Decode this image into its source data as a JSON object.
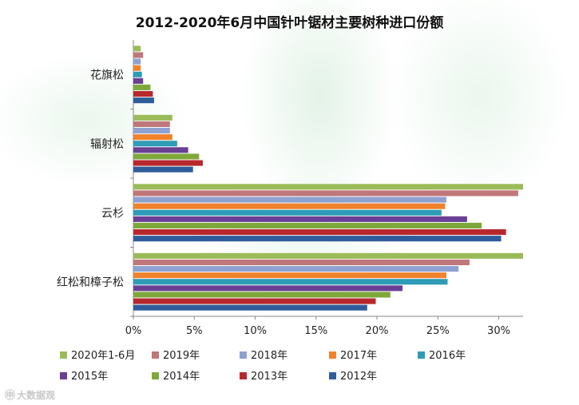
{
  "title": "2012-2020年6月中国针叶锯材主要树种进口份额",
  "watermark": "大数据观",
  "chart_data": {
    "type": "bar",
    "orientation": "horizontal",
    "title": "2012-2020年6月中国针叶锯材主要树种进口份额",
    "xlabel": "",
    "ylabel": "",
    "xlim": [
      0,
      32
    ],
    "x_ticks": [
      "0%",
      "5%",
      "10%",
      "15%",
      "20%",
      "25%",
      "30%"
    ],
    "x_tick_values": [
      0,
      5,
      10,
      15,
      20,
      25,
      30
    ],
    "legend_position": "bottom",
    "categories": [
      "花旗松",
      "辐射松",
      "云杉",
      "红松和樟子松"
    ],
    "series": [
      {
        "name": "2020年1-6月",
        "color": "#9bbb59",
        "values": [
          0.6,
          3.2,
          32.0,
          32.0
        ]
      },
      {
        "name": "2019年",
        "color": "#c0777a",
        "values": [
          0.8,
          3.0,
          31.6,
          27.6
        ]
      },
      {
        "name": "2018年",
        "color": "#8ea1d1",
        "values": [
          0.6,
          3.0,
          25.7,
          26.7
        ]
      },
      {
        "name": "2017年",
        "color": "#f0822c",
        "values": [
          0.6,
          3.2,
          25.6,
          25.7
        ]
      },
      {
        "name": "2016年",
        "color": "#2e9bb7",
        "values": [
          0.7,
          3.6,
          25.3,
          25.8
        ]
      },
      {
        "name": "2015年",
        "color": "#6a3f95",
        "values": [
          0.8,
          4.5,
          27.4,
          22.1
        ]
      },
      {
        "name": "2014年",
        "color": "#7ea83a",
        "values": [
          1.4,
          5.4,
          28.6,
          21.1
        ]
      },
      {
        "name": "2013年",
        "color": "#b7282d",
        "values": [
          1.6,
          5.7,
          30.6,
          19.9
        ]
      },
      {
        "name": "2012年",
        "color": "#2f5c9a",
        "values": [
          1.7,
          4.9,
          30.2,
          19.2
        ]
      }
    ]
  }
}
